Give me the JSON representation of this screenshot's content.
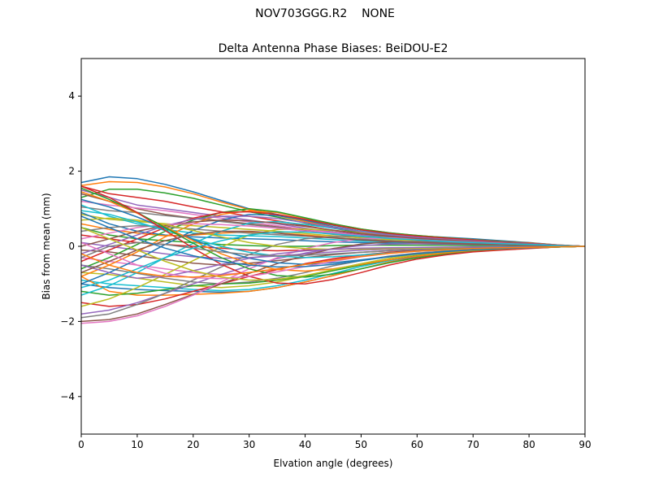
{
  "figure": {
    "suptitle": "NOV703GGG.R2    NONE"
  },
  "chart_data": {
    "type": "line",
    "title": "Delta Antenna Phase Biases: BeiDOU-E2",
    "xlabel": "Elvation angle (degrees)",
    "ylabel": "Bias from mean (mm)",
    "xlim": [
      0,
      90
    ],
    "ylim": [
      -5,
      5
    ],
    "xticks": [
      0,
      10,
      20,
      30,
      40,
      50,
      60,
      70,
      80,
      90
    ],
    "yticks": [
      -4,
      -2,
      0,
      2,
      4
    ],
    "ytick_labels": [
      "−4",
      "−2",
      "0",
      "2",
      "4"
    ],
    "grid": false,
    "legend": "none",
    "x": [
      0,
      5,
      10,
      15,
      20,
      25,
      30,
      35,
      40,
      45,
      50,
      55,
      60,
      65,
      70,
      75,
      80,
      85,
      90
    ],
    "colors": [
      "#1f77b4",
      "#ff7f0e",
      "#2ca02c",
      "#d62728",
      "#9467bd",
      "#8c564b",
      "#e377c2",
      "#7f7f7f",
      "#bcbd22",
      "#17becf"
    ],
    "series": [
      {
        "values": [
          1.7,
          1.85,
          1.8,
          1.65,
          1.45,
          1.22,
          1.0,
          0.85,
          0.68,
          0.52,
          0.4,
          0.32,
          0.28,
          0.24,
          0.2,
          0.15,
          0.1,
          0.04,
          0.0
        ]
      },
      {
        "values": [
          1.62,
          1.72,
          1.7,
          1.58,
          1.4,
          1.18,
          0.98,
          0.82,
          0.66,
          0.5,
          0.38,
          0.3,
          0.26,
          0.22,
          0.18,
          0.13,
          0.09,
          0.04,
          0.0
        ]
      },
      {
        "values": [
          1.3,
          1.52,
          1.52,
          1.42,
          1.28,
          1.1,
          0.92,
          0.78,
          0.62,
          0.48,
          0.36,
          0.28,
          0.24,
          0.2,
          0.17,
          0.12,
          0.08,
          0.03,
          0.0
        ]
      },
      {
        "values": [
          1.6,
          1.4,
          1.3,
          1.2,
          1.05,
          0.92,
          0.8,
          0.68,
          0.55,
          0.42,
          0.33,
          0.26,
          0.22,
          0.19,
          0.15,
          0.11,
          0.07,
          0.03,
          0.0
        ]
      },
      {
        "values": [
          1.5,
          1.3,
          1.1,
          1.0,
          0.9,
          0.8,
          0.7,
          0.6,
          0.48,
          0.38,
          0.3,
          0.24,
          0.2,
          0.17,
          0.14,
          0.1,
          0.07,
          0.03,
          0.0
        ]
      },
      {
        "values": [
          1.4,
          1.2,
          1.0,
          0.85,
          0.75,
          0.68,
          0.6,
          0.52,
          0.42,
          0.34,
          0.27,
          0.22,
          0.19,
          0.16,
          0.13,
          0.1,
          0.06,
          0.03,
          0.0
        ]
      },
      {
        "values": [
          1.2,
          1.1,
          1.02,
          0.95,
          0.85,
          0.75,
          0.65,
          0.55,
          0.45,
          0.36,
          0.28,
          0.22,
          0.18,
          0.15,
          0.12,
          0.09,
          0.06,
          0.03,
          0.0
        ]
      },
      {
        "values": [
          1.05,
          0.95,
          0.9,
          0.82,
          0.74,
          0.66,
          0.58,
          0.5,
          0.4,
          0.32,
          0.25,
          0.2,
          0.17,
          0.14,
          0.11,
          0.08,
          0.05,
          0.02,
          0.0
        ]
      },
      {
        "values": [
          0.85,
          0.72,
          0.66,
          0.6,
          0.55,
          0.5,
          0.45,
          0.4,
          0.34,
          0.28,
          0.22,
          0.18,
          0.15,
          0.13,
          0.1,
          0.08,
          0.05,
          0.02,
          0.0
        ]
      },
      {
        "values": [
          1.1,
          0.8,
          0.6,
          0.45,
          0.35,
          0.3,
          0.28,
          0.26,
          0.22,
          0.18,
          0.14,
          0.11,
          0.09,
          0.08,
          0.06,
          0.05,
          0.03,
          0.01,
          0.0
        ]
      },
      {
        "values": [
          0.9,
          0.6,
          0.4,
          0.3,
          0.25,
          0.22,
          0.2,
          0.18,
          0.15,
          0.12,
          0.1,
          0.08,
          0.07,
          0.06,
          0.05,
          0.04,
          0.03,
          0.01,
          0.0
        ]
      },
      {
        "values": [
          0.6,
          0.45,
          0.35,
          0.28,
          0.3,
          0.35,
          0.38,
          0.36,
          0.3,
          0.24,
          0.18,
          0.14,
          0.11,
          0.09,
          0.07,
          0.05,
          0.03,
          0.01,
          0.0
        ]
      },
      {
        "values": [
          0.5,
          0.3,
          0.2,
          0.15,
          0.1,
          0.05,
          0.02,
          0.0,
          0.0,
          0.02,
          0.03,
          0.03,
          0.03,
          0.03,
          0.02,
          0.02,
          0.01,
          0.0,
          0.0
        ]
      },
      {
        "values": [
          0.3,
          0.2,
          0.1,
          0.05,
          0.0,
          -0.05,
          -0.1,
          -0.12,
          -0.1,
          -0.08,
          -0.06,
          -0.05,
          -0.04,
          -0.03,
          -0.02,
          -0.02,
          -0.01,
          0.0,
          0.0
        ]
      },
      {
        "values": [
          0.1,
          0.0,
          -0.1,
          -0.2,
          -0.28,
          -0.32,
          -0.3,
          -0.26,
          -0.2,
          -0.15,
          -0.1,
          -0.08,
          -0.06,
          -0.05,
          -0.04,
          -0.03,
          -0.02,
          -0.01,
          0.0
        ]
      },
      {
        "values": [
          -0.1,
          -0.15,
          -0.25,
          -0.35,
          -0.45,
          -0.5,
          -0.45,
          -0.38,
          -0.3,
          -0.22,
          -0.16,
          -0.12,
          -0.09,
          -0.07,
          -0.05,
          -0.04,
          -0.02,
          -0.01,
          0.0
        ]
      },
      {
        "values": [
          -0.3,
          -0.4,
          -0.5,
          -0.6,
          -0.7,
          -0.75,
          -0.7,
          -0.6,
          -0.48,
          -0.36,
          -0.26,
          -0.18,
          -0.13,
          -0.1,
          -0.07,
          -0.05,
          -0.03,
          -0.01,
          0.0
        ]
      },
      {
        "values": [
          -0.5,
          -0.6,
          -0.72,
          -0.85,
          -0.95,
          -1.0,
          -0.95,
          -0.85,
          -0.7,
          -0.52,
          -0.38,
          -0.26,
          -0.18,
          -0.13,
          -0.09,
          -0.06,
          -0.04,
          -0.02,
          0.0
        ]
      },
      {
        "values": [
          -0.7,
          -0.75,
          -0.85,
          -0.95,
          -1.05,
          -1.1,
          -1.05,
          -0.95,
          -0.8,
          -0.62,
          -0.46,
          -0.32,
          -0.22,
          -0.16,
          -0.11,
          -0.07,
          -0.05,
          -0.02,
          0.0
        ]
      },
      {
        "values": [
          -0.9,
          -1.0,
          -1.05,
          -1.1,
          -1.15,
          -1.18,
          -1.15,
          -1.05,
          -0.9,
          -0.72,
          -0.54,
          -0.38,
          -0.26,
          -0.18,
          -0.12,
          -0.08,
          -0.05,
          -0.02,
          0.0
        ]
      },
      {
        "values": [
          -1.0,
          -1.1,
          -1.15,
          -1.18,
          -1.2,
          -1.22,
          -1.2,
          -1.1,
          -0.95,
          -0.78,
          -0.6,
          -0.42,
          -0.28,
          -0.2,
          -0.13,
          -0.09,
          -0.05,
          -0.02,
          0.0
        ]
      },
      {
        "values": [
          -0.8,
          -1.2,
          -1.3,
          -1.3,
          -1.28,
          -1.25,
          -1.2,
          -1.1,
          -0.95,
          -0.78,
          -0.6,
          -0.42,
          -0.3,
          -0.21,
          -0.14,
          -0.09,
          -0.05,
          -0.02,
          0.0
        ]
      },
      {
        "values": [
          -1.2,
          -1.3,
          -1.25,
          -1.15,
          -1.05,
          -1.0,
          -0.98,
          -0.9,
          -0.8,
          -0.65,
          -0.5,
          -0.36,
          -0.25,
          -0.18,
          -0.12,
          -0.08,
          -0.05,
          -0.02,
          0.0
        ]
      },
      {
        "values": [
          -1.5,
          -1.6,
          -1.55,
          -1.4,
          -1.2,
          -1.0,
          -0.8,
          -0.62,
          -0.46,
          -0.33,
          -0.23,
          -0.16,
          -0.11,
          -0.08,
          -0.06,
          -0.04,
          -0.03,
          -0.01,
          0.0
        ]
      },
      {
        "values": [
          -1.8,
          -1.7,
          -1.5,
          -1.25,
          -1.0,
          -0.75,
          -0.52,
          -0.33,
          -0.18,
          -0.06,
          0.02,
          0.06,
          0.07,
          0.06,
          0.05,
          0.04,
          0.03,
          0.01,
          0.0
        ]
      },
      {
        "values": [
          -2.0,
          -1.95,
          -1.8,
          -1.55,
          -1.28,
          -1.0,
          -0.72,
          -0.46,
          -0.24,
          -0.06,
          0.06,
          0.12,
          0.13,
          0.12,
          0.1,
          0.08,
          0.05,
          0.02,
          0.0
        ]
      },
      {
        "values": [
          -2.05,
          -2.0,
          -1.85,
          -1.6,
          -1.3,
          -0.95,
          -0.6,
          -0.3,
          -0.06,
          0.1,
          0.2,
          0.22,
          0.21,
          0.18,
          0.14,
          0.1,
          0.06,
          0.02,
          0.0
        ]
      },
      {
        "values": [
          -1.9,
          -1.8,
          -1.55,
          -1.25,
          -0.9,
          -0.55,
          -0.22,
          0.05,
          0.2,
          0.26,
          0.27,
          0.26,
          0.23,
          0.19,
          0.15,
          0.11,
          0.06,
          0.02,
          0.0
        ]
      },
      {
        "values": [
          -1.6,
          -1.4,
          -1.1,
          -0.75,
          -0.38,
          -0.02,
          0.3,
          0.45,
          0.46,
          0.42,
          0.36,
          0.3,
          0.25,
          0.21,
          0.16,
          0.12,
          0.07,
          0.02,
          0.0
        ]
      },
      {
        "values": [
          -1.3,
          -1.05,
          -0.7,
          -0.3,
          0.08,
          0.4,
          0.62,
          0.66,
          0.58,
          0.48,
          0.4,
          0.33,
          0.27,
          0.22,
          0.17,
          0.12,
          0.07,
          0.02,
          0.0
        ]
      },
      {
        "values": [
          -1.0,
          -0.7,
          -0.35,
          0.05,
          0.42,
          0.7,
          0.85,
          0.82,
          0.7,
          0.56,
          0.44,
          0.35,
          0.28,
          0.23,
          0.18,
          0.13,
          0.08,
          0.03,
          0.0
        ]
      },
      {
        "values": [
          -0.8,
          -0.5,
          -0.15,
          0.25,
          0.6,
          0.85,
          0.95,
          0.9,
          0.75,
          0.6,
          0.46,
          0.36,
          0.29,
          0.23,
          0.18,
          0.13,
          0.08,
          0.03,
          0.0
        ]
      },
      {
        "values": [
          -0.6,
          -0.3,
          0.05,
          0.4,
          0.7,
          0.9,
          1.0,
          0.92,
          0.76,
          0.6,
          0.46,
          0.36,
          0.29,
          0.23,
          0.18,
          0.13,
          0.08,
          0.03,
          0.0
        ]
      },
      {
        "values": [
          -0.4,
          -0.1,
          0.2,
          0.5,
          0.75,
          0.9,
          0.92,
          0.85,
          0.72,
          0.57,
          0.44,
          0.34,
          0.27,
          0.22,
          0.17,
          0.12,
          0.08,
          0.03,
          0.0
        ]
      },
      {
        "values": [
          -0.2,
          0.05,
          0.3,
          0.55,
          0.72,
          0.8,
          0.8,
          0.74,
          0.63,
          0.5,
          0.39,
          0.3,
          0.24,
          0.19,
          0.15,
          0.11,
          0.07,
          0.03,
          0.0
        ]
      },
      {
        "values": [
          0.0,
          0.2,
          0.4,
          0.55,
          0.65,
          0.7,
          0.68,
          0.62,
          0.53,
          0.43,
          0.34,
          0.27,
          0.21,
          0.17,
          0.13,
          0.1,
          0.06,
          0.02,
          0.0
        ]
      },
      {
        "values": [
          0.2,
          0.35,
          0.5,
          0.58,
          0.6,
          0.58,
          0.54,
          0.48,
          0.41,
          0.34,
          0.27,
          0.21,
          0.17,
          0.14,
          0.11,
          0.08,
          0.05,
          0.02,
          0.0
        ]
      },
      {
        "values": [
          0.4,
          0.5,
          0.55,
          0.52,
          0.46,
          0.4,
          0.35,
          0.31,
          0.27,
          0.23,
          0.19,
          0.15,
          0.12,
          0.1,
          0.08,
          0.06,
          0.04,
          0.02,
          0.0
        ]
      },
      {
        "values": [
          0.7,
          0.75,
          0.7,
          0.58,
          0.42,
          0.25,
          0.1,
          0.0,
          -0.06,
          -0.08,
          -0.07,
          -0.06,
          -0.05,
          -0.04,
          -0.03,
          -0.02,
          -0.01,
          0.0,
          0.0
        ]
      },
      {
        "values": [
          0.95,
          0.85,
          0.65,
          0.42,
          0.2,
          0.0,
          -0.16,
          -0.26,
          -0.3,
          -0.28,
          -0.23,
          -0.18,
          -0.13,
          -0.1,
          -0.07,
          -0.05,
          -0.03,
          -0.01,
          0.0
        ]
      },
      {
        "values": [
          1.25,
          1.05,
          0.78,
          0.48,
          0.18,
          -0.1,
          -0.32,
          -0.44,
          -0.48,
          -0.44,
          -0.36,
          -0.28,
          -0.2,
          -0.14,
          -0.1,
          -0.07,
          -0.04,
          -0.02,
          0.0
        ]
      },
      {
        "values": [
          1.45,
          1.2,
          0.88,
          0.52,
          0.15,
          -0.2,
          -0.46,
          -0.62,
          -0.66,
          -0.6,
          -0.48,
          -0.36,
          -0.26,
          -0.18,
          -0.12,
          -0.08,
          -0.05,
          -0.02,
          0.0
        ]
      },
      {
        "values": [
          1.55,
          1.25,
          0.9,
          0.5,
          0.08,
          -0.3,
          -0.6,
          -0.78,
          -0.82,
          -0.74,
          -0.6,
          -0.44,
          -0.31,
          -0.21,
          -0.14,
          -0.09,
          -0.05,
          -0.02,
          0.0
        ]
      },
      {
        "values": [
          1.6,
          1.3,
          0.9,
          0.42,
          -0.05,
          -0.48,
          -0.8,
          -0.98,
          -1.0,
          -0.88,
          -0.7,
          -0.5,
          -0.34,
          -0.23,
          -0.15,
          -0.1,
          -0.06,
          -0.02,
          0.0
        ]
      },
      {
        "values": [
          -0.5,
          -0.7,
          -0.85,
          -0.8,
          -0.65,
          -0.48,
          -0.32,
          -0.2,
          -0.12,
          -0.08,
          -0.05,
          -0.04,
          -0.03,
          -0.02,
          -0.02,
          -0.01,
          -0.01,
          0.0,
          0.0
        ]
      },
      {
        "values": [
          -0.7,
          -0.4,
          -0.1,
          0.15,
          0.32,
          0.4,
          0.4,
          0.35,
          0.28,
          0.22,
          0.17,
          0.13,
          0.1,
          0.08,
          0.06,
          0.05,
          0.03,
          0.01,
          0.0
        ]
      },
      {
        "values": [
          0.1,
          -0.2,
          -0.5,
          -0.72,
          -0.84,
          -0.86,
          -0.8,
          -0.68,
          -0.54,
          -0.4,
          -0.28,
          -0.19,
          -0.13,
          -0.09,
          -0.06,
          -0.04,
          -0.03,
          -0.01,
          0.0
        ]
      },
      {
        "values": [
          -0.3,
          0.0,
          0.1,
          0.05,
          -0.05,
          -0.15,
          -0.22,
          -0.25,
          -0.24,
          -0.2,
          -0.16,
          -0.12,
          -0.09,
          -0.07,
          -0.05,
          -0.04,
          -0.02,
          -0.01,
          0.0
        ]
      },
      {
        "values": [
          0.5,
          0.2,
          -0.1,
          -0.4,
          -0.65,
          -0.82,
          -0.9,
          -0.88,
          -0.78,
          -0.62,
          -0.46,
          -0.32,
          -0.22,
          -0.15,
          -0.1,
          -0.07,
          -0.04,
          -0.02,
          0.0
        ]
      },
      {
        "values": [
          -1.1,
          -0.9,
          -0.6,
          -0.3,
          -0.05,
          0.15,
          0.3,
          0.38,
          0.38,
          0.33,
          0.27,
          0.21,
          0.17,
          0.13,
          0.1,
          0.07,
          0.05,
          0.02,
          0.0
        ]
      },
      {
        "values": [
          0.8,
          0.5,
          0.2,
          -0.05,
          -0.25,
          -0.4,
          -0.5,
          -0.55,
          -0.54,
          -0.48,
          -0.38,
          -0.28,
          -0.2,
          -0.14,
          -0.09,
          -0.06,
          -0.04,
          -0.01,
          0.0
        ]
      },
      {
        "values": [
          -0.2,
          -0.5,
          -0.7,
          -0.8,
          -0.82,
          -0.78,
          -0.7,
          -0.6,
          -0.48,
          -0.37,
          -0.27,
          -0.19,
          -0.13,
          -0.09,
          -0.06,
          -0.04,
          -0.03,
          -0.01,
          0.0
        ]
      }
    ]
  }
}
